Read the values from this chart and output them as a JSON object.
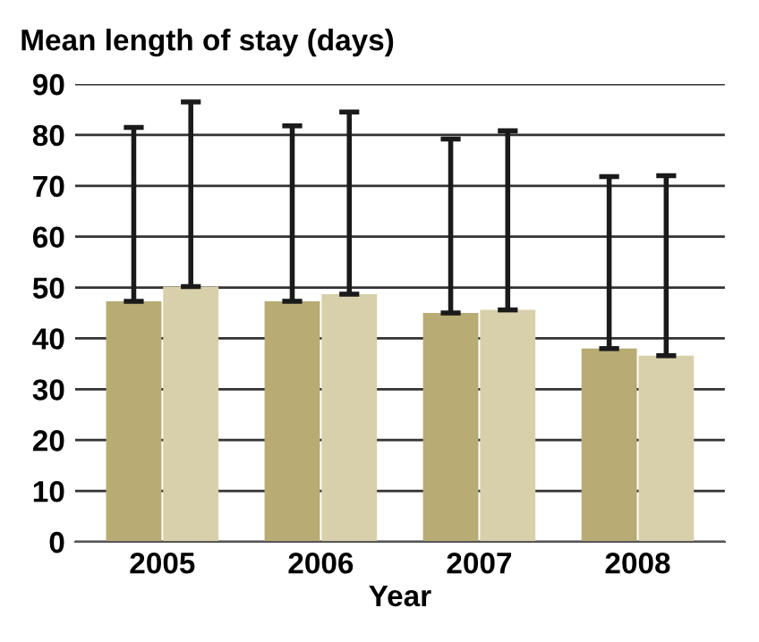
{
  "chart_data": {
    "type": "bar",
    "ylabel": "Mean length of stay (days)",
    "xlabel": "Year",
    "categories": [
      "2005",
      "2006",
      "2007",
      "2008"
    ],
    "series": [
      {
        "color": "#b8ab74",
        "values": [
          47.3,
          47.3,
          45,
          38
        ],
        "errors": [
          [
            47.3,
            81.5
          ],
          [
            47.3,
            81.8
          ],
          [
            45,
            79.2
          ],
          [
            38,
            71.8
          ]
        ]
      },
      {
        "color": "#d8d0aa",
        "values": [
          50.2,
          48.7,
          45.6,
          36.6
        ],
        "errors": [
          [
            50.2,
            86.5
          ],
          [
            48.7,
            84.5
          ],
          [
            45.6,
            80.8
          ],
          [
            36.6,
            72
          ]
        ]
      }
    ],
    "ylim": [
      0,
      90
    ],
    "yticks": [
      0,
      10,
      20,
      30,
      40,
      50,
      60,
      70,
      80,
      90
    ],
    "grid": "y",
    "legend": false
  }
}
